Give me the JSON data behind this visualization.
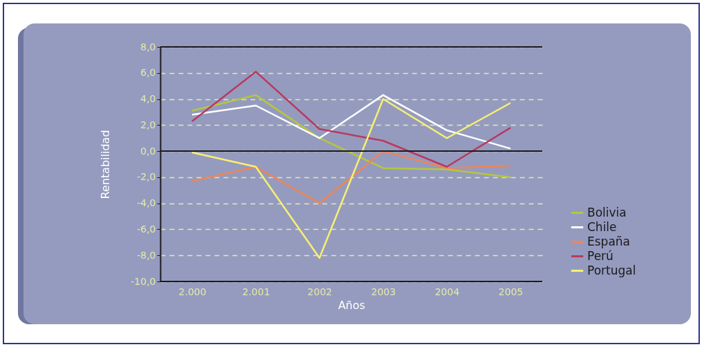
{
  "chart_data": {
    "type": "line",
    "xlabel": "Años",
    "ylabel": "Rentabilidad",
    "categories": [
      "2.000",
      "2.001",
      "2002",
      "2003",
      "2004",
      "2005"
    ],
    "series": [
      {
        "name": "Bolivia",
        "color": "#b5c83a",
        "values": [
          3.1,
          4.3,
          1.0,
          -1.3,
          -1.4,
          -2.0
        ]
      },
      {
        "name": "Chile",
        "color": "#ffffff",
        "values": [
          2.8,
          3.5,
          1.0,
          4.3,
          1.6,
          0.2
        ]
      },
      {
        "name": "España",
        "color": "#f08458",
        "values": [
          -2.3,
          -1.2,
          -4.0,
          0.0,
          -1.3,
          -1.1
        ]
      },
      {
        "name": "Perú",
        "color": "#b83a5e",
        "values": [
          2.3,
          6.1,
          1.7,
          0.8,
          -1.2,
          1.8
        ]
      },
      {
        "name": "Portugal",
        "color": "#f8f070",
        "values": [
          -0.1,
          -1.2,
          -8.2,
          4.0,
          1.0,
          3.7
        ]
      }
    ],
    "ylim": [
      -10,
      8
    ],
    "yticks": [
      {
        "value": -10,
        "label": "-10,0"
      },
      {
        "value": -8,
        "label": "-8,0"
      },
      {
        "value": -6,
        "label": "-6,0"
      },
      {
        "value": -4,
        "label": "-4,0"
      },
      {
        "value": -2,
        "label": "-2,0"
      },
      {
        "value": 0,
        "label": "0,0"
      },
      {
        "value": 2,
        "label": "2,0"
      },
      {
        "value": 4,
        "label": "4,0"
      },
      {
        "value": 6,
        "label": "6,0"
      },
      {
        "value": 8,
        "label": "8,0"
      }
    ],
    "ref_lines": [
      {
        "axis": "y",
        "value": 0,
        "color": "#1a1a1a"
      },
      {
        "axis": "y",
        "value": 8,
        "color": "#1a1a1a"
      }
    ],
    "grid": "y",
    "legend": "right",
    "marker": "none",
    "line_style": "solid"
  }
}
